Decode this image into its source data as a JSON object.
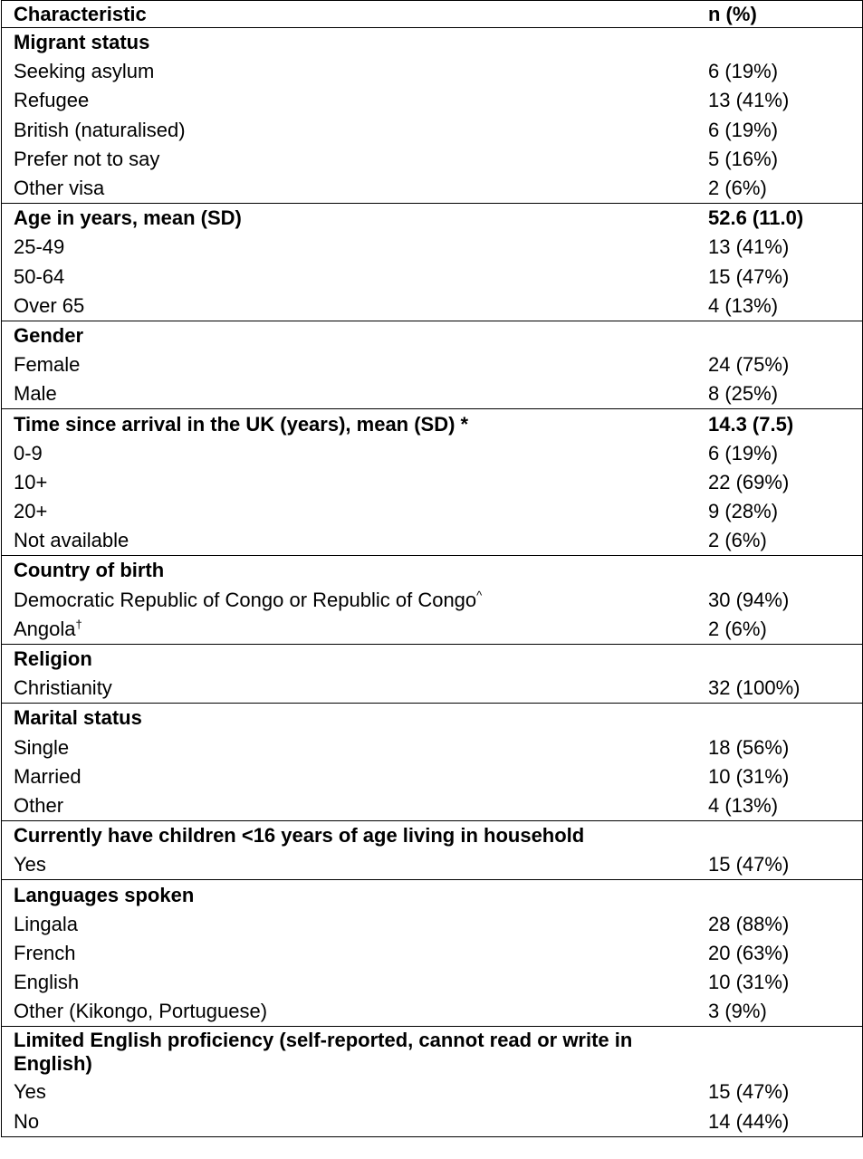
{
  "header": {
    "characteristic": "Characteristic",
    "value": "n (%)"
  },
  "sections": [
    {
      "title": "Migrant status",
      "title_value": "",
      "rows": [
        {
          "label": "Seeking asylum",
          "value": "6 (19%)"
        },
        {
          "label": "Refugee",
          "value": "13 (41%)"
        },
        {
          "label": "British (naturalised)",
          "value": "6 (19%)"
        },
        {
          "label": "Prefer not to say",
          "value": "5 (16%)"
        },
        {
          "label": "Other visa",
          "value": "2 (6%)"
        }
      ]
    },
    {
      "title": "Age in years, mean (SD)",
      "title_value": "52.6 (11.0)",
      "rows": [
        {
          "label": "25-49",
          "value": "13 (41%)"
        },
        {
          "label": "50-64",
          "value": "15 (47%)"
        },
        {
          "label": "Over 65",
          "value": "4 (13%)"
        }
      ]
    },
    {
      "title": "Gender",
      "title_value": "",
      "rows": [
        {
          "label": "Female",
          "value": "24 (75%)"
        },
        {
          "label": "Male",
          "value": "8 (25%)"
        }
      ]
    },
    {
      "title": "Time since arrival in the UK (years), mean (SD) *",
      "title_value": "14.3 (7.5)",
      "rows": [
        {
          "label": "0-9",
          "value": "6 (19%)"
        },
        {
          "label": "10+",
          "value": "22 (69%)"
        },
        {
          "label": "20+",
          "value": "9 (28%)"
        },
        {
          "label": "Not available",
          "value": "2 (6%)"
        }
      ]
    },
    {
      "title": "Country of birth",
      "title_value": "",
      "rows": [
        {
          "label": "Democratic Republic of Congo or Republic of Congo",
          "sup": "^",
          "value": "30 (94%)"
        },
        {
          "label": "Angola",
          "sup": "†",
          "value": "2 (6%)"
        }
      ]
    },
    {
      "title": "Religion",
      "title_value": "",
      "rows": [
        {
          "label": "Christianity",
          "value": "32 (100%)"
        }
      ]
    },
    {
      "title": "Marital status",
      "title_value": "",
      "rows": [
        {
          "label": "Single",
          "value": "18 (56%)"
        },
        {
          "label": "Married",
          "value": "10 (31%)"
        },
        {
          "label": "Other",
          "value": "4 (13%)"
        }
      ]
    },
    {
      "title": "Currently have children <16 years of age living in household",
      "title_value": "",
      "rows": [
        {
          "label": "Yes",
          "value": "15 (47%)"
        }
      ]
    },
    {
      "title": "Languages spoken",
      "title_value": "",
      "rows": [
        {
          "label": "Lingala",
          "value": "28 (88%)"
        },
        {
          "label": "French",
          "value": "20 (63%)"
        },
        {
          "label": "English",
          "value": "10 (31%)"
        },
        {
          "label": "Other (Kikongo, Portuguese)",
          "value": "3 (9%)"
        }
      ]
    },
    {
      "title": "Limited English proficiency (self-reported, cannot read or write in English)",
      "title_value": "",
      "rows": [
        {
          "label": "Yes",
          "value": "15 (47%)"
        },
        {
          "label": "No",
          "value": "14 (44%)"
        }
      ]
    }
  ]
}
